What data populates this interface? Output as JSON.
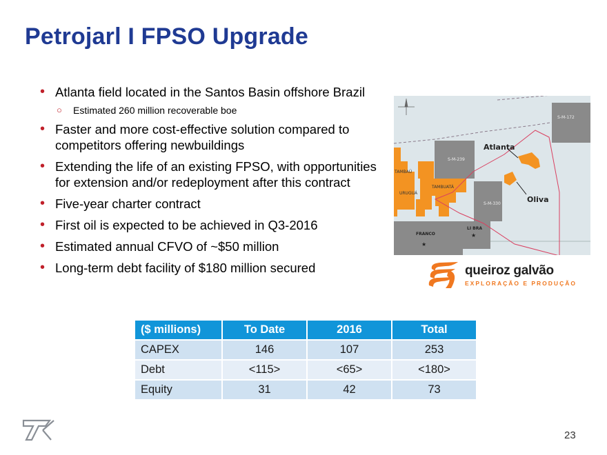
{
  "slide": {
    "title": "Petrojarl I FPSO Upgrade",
    "bullets": [
      "Atlanta field located in the Santos Basin offshore Brazil",
      "Faster and more cost-effective solution compared to competitors offering newbuildings",
      "Extending the life of an existing FPSO, with opportunities for extension and/or redeployment after this contract",
      "Five-year charter contract",
      "First oil is expected to be achieved in Q3-2016",
      "Estimated annual CFVO of ~$50 million",
      "Long-term debt facility of $180 million secured"
    ],
    "sub_bullet": "Estimated 260 million recoverable boe",
    "page_number": "23"
  },
  "map": {
    "labels": {
      "atlanta": "Atlanta",
      "oliva": "Oliva",
      "s172": "S-M-172",
      "s239": "S-M-239",
      "s330": "S-M-330",
      "tambau": "TAMBAÚ",
      "tambuata": "TAMBUATÁ",
      "uruguá": "URUGUÁ",
      "franco": "FRANCO",
      "libra": "LI BRA"
    },
    "colors": {
      "water": "#dde6ea",
      "block": "#8a8a8a",
      "orange": "#f39322",
      "red": "#e14a25"
    }
  },
  "logo": {
    "name": "queiroz galvão",
    "subtitle": "EXPLORAÇÃO E PRODUÇÃO",
    "color": "#f07820"
  },
  "table": {
    "headers": [
      "($ millions)",
      "To Date",
      "2016",
      "Total"
    ],
    "rows": [
      [
        "CAPEX",
        "146",
        "107",
        "253"
      ],
      [
        "Debt",
        "<115>",
        "<65>",
        "<180>"
      ],
      [
        "Equity",
        "31",
        "42",
        "73"
      ]
    ],
    "header_color": "#1195d9"
  },
  "colors": {
    "title": "#1f3a93",
    "bullet": "#c0202a"
  }
}
